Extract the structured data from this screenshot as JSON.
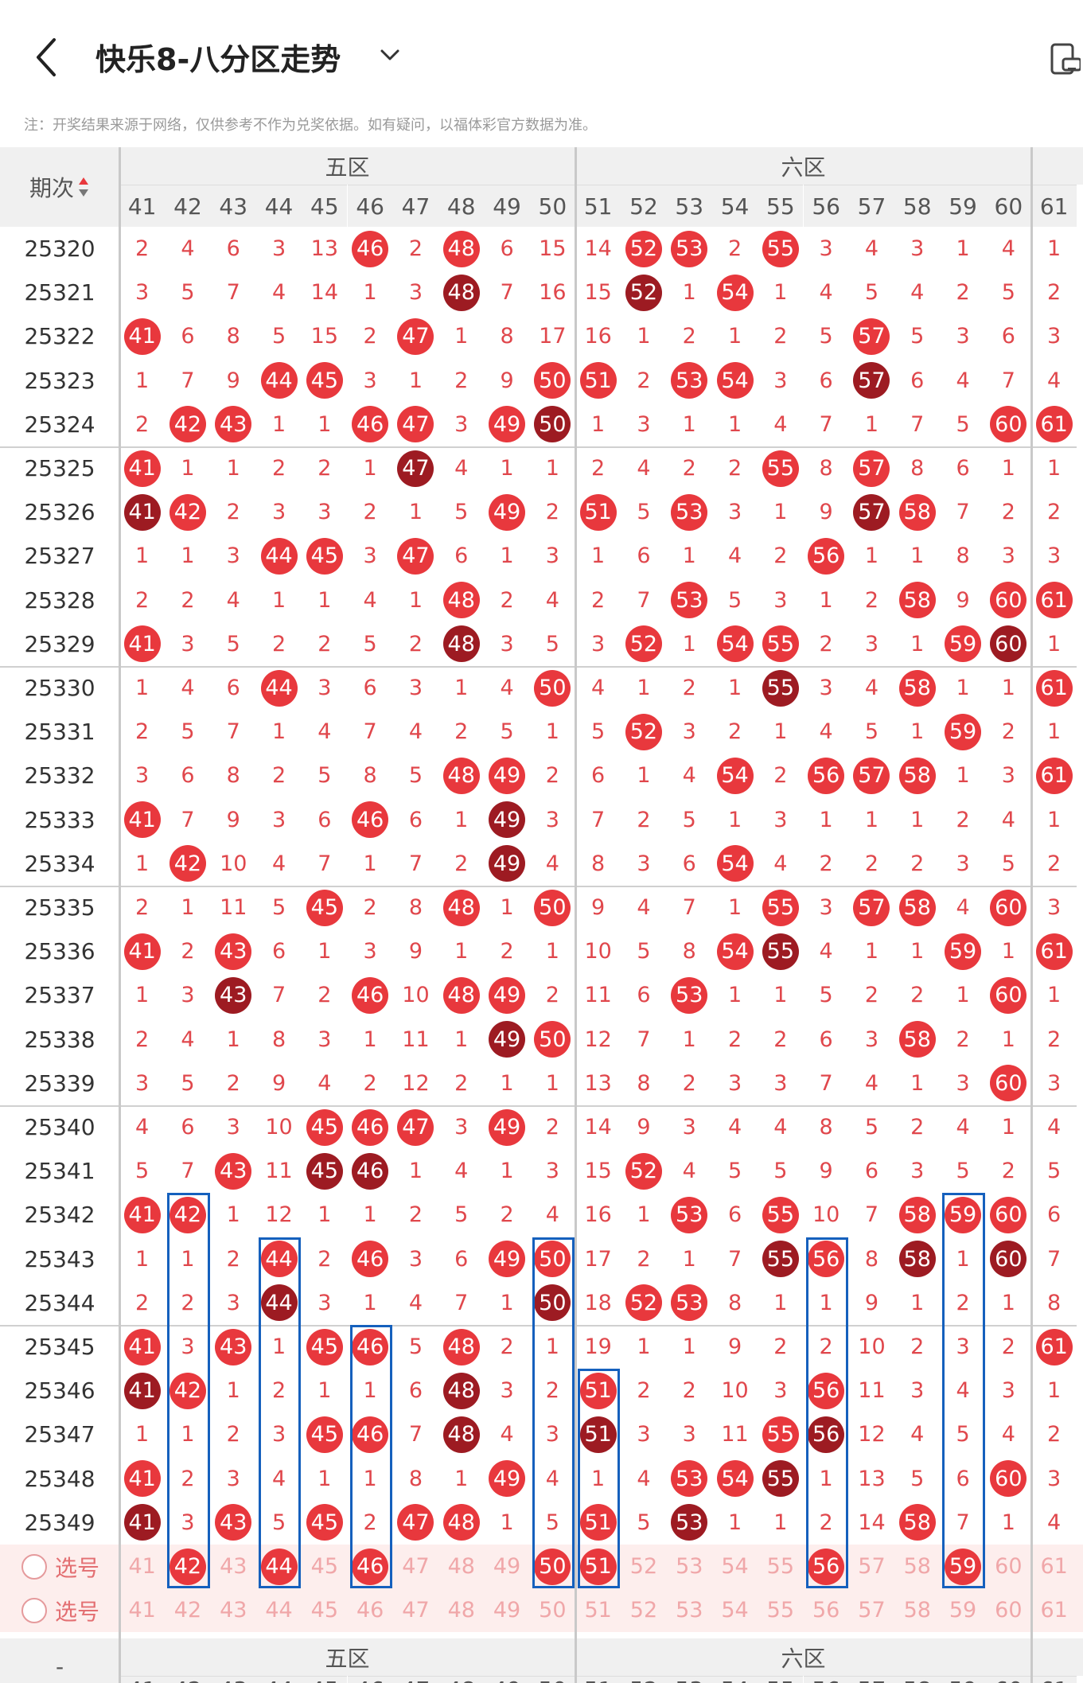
{
  "header": {
    "title": "快乐8-八分区走势",
    "back_icon": "chevron-left-icon",
    "dropdown_icon": "chevron-down-icon",
    "device_icon": "phone-rotate-icon"
  },
  "note": "注：开奖结果来源于网络，仅供参考不作为兑奖依据。如有疑问，以福体彩官方数据为准。",
  "table": {
    "issue_header": "期次",
    "zones": [
      {
        "name": "五区"
      },
      {
        "name": "六区"
      }
    ],
    "columns": [
      "41",
      "42",
      "43",
      "44",
      "45",
      "46",
      "47",
      "48",
      "49",
      "50",
      "51",
      "52",
      "53",
      "54",
      "55",
      "56",
      "57",
      "58",
      "59",
      "60",
      "61"
    ],
    "colors": {
      "hit": "#e8383d",
      "repeat": "#9d1b22",
      "miss_text": "#e0474c",
      "select_text": "#f0a7a9",
      "select_bg": "#fdeeed",
      "select_label": "#e36f72",
      "blue_box": "#1560bd"
    },
    "rows": [
      {
        "issue": "25320",
        "values": [
          "2",
          "4",
          "6",
          "3",
          "13",
          "46",
          "2",
          "48",
          "6",
          "15",
          "14",
          "52",
          "53",
          "2",
          "55",
          "3",
          "4",
          "3",
          "1",
          "4",
          "1"
        ]
      },
      {
        "issue": "25321",
        "values": [
          "3",
          "5",
          "7",
          "4",
          "14",
          "1",
          "3",
          "48",
          "7",
          "16",
          "15",
          "52",
          "1",
          "54",
          "1",
          "4",
          "5",
          "4",
          "2",
          "5",
          "2"
        ]
      },
      {
        "issue": "25322",
        "values": [
          "41",
          "6",
          "8",
          "5",
          "15",
          "2",
          "47",
          "1",
          "8",
          "17",
          "16",
          "1",
          "2",
          "1",
          "2",
          "5",
          "57",
          "5",
          "3",
          "6",
          "3"
        ]
      },
      {
        "issue": "25323",
        "values": [
          "1",
          "7",
          "9",
          "44",
          "45",
          "3",
          "1",
          "2",
          "9",
          "50",
          "51",
          "2",
          "53",
          "54",
          "3",
          "6",
          "57",
          "6",
          "4",
          "7",
          "4"
        ]
      },
      {
        "issue": "25324",
        "values": [
          "2",
          "42",
          "43",
          "1",
          "1",
          "46",
          "47",
          "3",
          "49",
          "50",
          "1",
          "3",
          "1",
          "1",
          "4",
          "7",
          "1",
          "7",
          "5",
          "60",
          "61"
        ]
      },
      {
        "issue": "25325",
        "values": [
          "41",
          "1",
          "1",
          "2",
          "2",
          "1",
          "47",
          "4",
          "1",
          "1",
          "2",
          "4",
          "2",
          "2",
          "55",
          "8",
          "57",
          "8",
          "6",
          "1",
          "1"
        ]
      },
      {
        "issue": "25326",
        "values": [
          "41",
          "42",
          "2",
          "3",
          "3",
          "2",
          "1",
          "5",
          "49",
          "2",
          "51",
          "5",
          "53",
          "3",
          "1",
          "9",
          "57",
          "58",
          "7",
          "2",
          "2"
        ]
      },
      {
        "issue": "25327",
        "values": [
          "1",
          "1",
          "3",
          "44",
          "45",
          "3",
          "47",
          "6",
          "1",
          "3",
          "1",
          "6",
          "1",
          "4",
          "2",
          "56",
          "1",
          "1",
          "8",
          "3",
          "3"
        ]
      },
      {
        "issue": "25328",
        "values": [
          "2",
          "2",
          "4",
          "1",
          "1",
          "4",
          "1",
          "48",
          "2",
          "4",
          "2",
          "7",
          "53",
          "5",
          "3",
          "1",
          "2",
          "58",
          "9",
          "60",
          "61"
        ]
      },
      {
        "issue": "25329",
        "values": [
          "41",
          "3",
          "5",
          "2",
          "2",
          "5",
          "2",
          "48",
          "3",
          "5",
          "3",
          "52",
          "1",
          "54",
          "55",
          "2",
          "3",
          "1",
          "59",
          "60",
          "1"
        ]
      },
      {
        "issue": "25330",
        "values": [
          "1",
          "4",
          "6",
          "44",
          "3",
          "6",
          "3",
          "1",
          "4",
          "50",
          "4",
          "1",
          "2",
          "1",
          "55",
          "3",
          "4",
          "58",
          "1",
          "1",
          "61"
        ]
      },
      {
        "issue": "25331",
        "values": [
          "2",
          "5",
          "7",
          "1",
          "4",
          "7",
          "4",
          "2",
          "5",
          "1",
          "5",
          "52",
          "3",
          "2",
          "1",
          "4",
          "5",
          "1",
          "59",
          "2",
          "1"
        ]
      },
      {
        "issue": "25332",
        "values": [
          "3",
          "6",
          "8",
          "2",
          "5",
          "8",
          "5",
          "48",
          "49",
          "2",
          "6",
          "1",
          "4",
          "54",
          "2",
          "56",
          "57",
          "58",
          "1",
          "3",
          "61"
        ]
      },
      {
        "issue": "25333",
        "values": [
          "41",
          "7",
          "9",
          "3",
          "6",
          "46",
          "6",
          "1",
          "49",
          "3",
          "7",
          "2",
          "5",
          "1",
          "3",
          "1",
          "1",
          "1",
          "2",
          "4",
          "1"
        ]
      },
      {
        "issue": "25334",
        "values": [
          "1",
          "42",
          "10",
          "4",
          "7",
          "1",
          "7",
          "2",
          "49",
          "4",
          "8",
          "3",
          "6",
          "54",
          "4",
          "2",
          "2",
          "2",
          "3",
          "5",
          "2"
        ]
      },
      {
        "issue": "25335",
        "values": [
          "2",
          "1",
          "11",
          "5",
          "45",
          "2",
          "8",
          "48",
          "1",
          "50",
          "9",
          "4",
          "7",
          "1",
          "55",
          "3",
          "57",
          "58",
          "4",
          "60",
          "3"
        ]
      },
      {
        "issue": "25336",
        "values": [
          "41",
          "2",
          "43",
          "6",
          "1",
          "3",
          "9",
          "1",
          "2",
          "1",
          "10",
          "5",
          "8",
          "54",
          "55",
          "4",
          "1",
          "1",
          "59",
          "1",
          "61"
        ]
      },
      {
        "issue": "25337",
        "values": [
          "1",
          "3",
          "43",
          "7",
          "2",
          "46",
          "10",
          "48",
          "49",
          "2",
          "11",
          "6",
          "53",
          "1",
          "1",
          "5",
          "2",
          "2",
          "1",
          "60",
          "1"
        ]
      },
      {
        "issue": "25338",
        "values": [
          "2",
          "4",
          "1",
          "8",
          "3",
          "1",
          "11",
          "1",
          "49",
          "50",
          "12",
          "7",
          "1",
          "2",
          "2",
          "6",
          "3",
          "58",
          "2",
          "1",
          "2"
        ]
      },
      {
        "issue": "25339",
        "values": [
          "3",
          "5",
          "2",
          "9",
          "4",
          "2",
          "12",
          "2",
          "1",
          "1",
          "13",
          "8",
          "2",
          "3",
          "3",
          "7",
          "4",
          "1",
          "3",
          "60",
          "3"
        ]
      },
      {
        "issue": "25340",
        "values": [
          "4",
          "6",
          "3",
          "10",
          "45",
          "46",
          "47",
          "3",
          "49",
          "2",
          "14",
          "9",
          "3",
          "4",
          "4",
          "8",
          "5",
          "2",
          "4",
          "1",
          "4"
        ]
      },
      {
        "issue": "25341",
        "values": [
          "5",
          "7",
          "43",
          "11",
          "45",
          "46",
          "1",
          "4",
          "1",
          "3",
          "15",
          "52",
          "4",
          "5",
          "5",
          "9",
          "6",
          "3",
          "5",
          "2",
          "5"
        ]
      },
      {
        "issue": "25342",
        "values": [
          "41",
          "42",
          "1",
          "12",
          "1",
          "1",
          "2",
          "5",
          "2",
          "4",
          "16",
          "1",
          "53",
          "6",
          "55",
          "10",
          "7",
          "58",
          "59",
          "60",
          "6"
        ]
      },
      {
        "issue": "25343",
        "values": [
          "1",
          "1",
          "2",
          "44",
          "2",
          "46",
          "3",
          "6",
          "49",
          "50",
          "17",
          "2",
          "1",
          "7",
          "55",
          "56",
          "8",
          "58",
          "1",
          "60",
          "7"
        ]
      },
      {
        "issue": "25344",
        "values": [
          "2",
          "2",
          "3",
          "44",
          "3",
          "1",
          "4",
          "7",
          "1",
          "50",
          "18",
          "52",
          "53",
          "8",
          "1",
          "1",
          "9",
          "1",
          "2",
          "1",
          "8"
        ]
      },
      {
        "issue": "25345",
        "values": [
          "41",
          "3",
          "43",
          "1",
          "45",
          "46",
          "5",
          "48",
          "2",
          "1",
          "19",
          "1",
          "1",
          "9",
          "2",
          "2",
          "10",
          "2",
          "3",
          "2",
          "61"
        ]
      },
      {
        "issue": "25346",
        "values": [
          "41",
          "42",
          "1",
          "2",
          "1",
          "1",
          "6",
          "48",
          "3",
          "2",
          "51",
          "2",
          "2",
          "10",
          "3",
          "56",
          "11",
          "3",
          "4",
          "3",
          "1"
        ]
      },
      {
        "issue": "25347",
        "values": [
          "1",
          "1",
          "2",
          "3",
          "45",
          "46",
          "7",
          "48",
          "4",
          "3",
          "51",
          "3",
          "3",
          "11",
          "55",
          "56",
          "12",
          "4",
          "5",
          "4",
          "2"
        ]
      },
      {
        "issue": "25348",
        "values": [
          "41",
          "2",
          "3",
          "4",
          "1",
          "1",
          "8",
          "1",
          "49",
          "4",
          "1",
          "4",
          "53",
          "54",
          "55",
          "1",
          "13",
          "5",
          "6",
          "60",
          "3"
        ]
      },
      {
        "issue": "25349",
        "values": [
          "41",
          "3",
          "43",
          "5",
          "45",
          "2",
          "47",
          "48",
          "1",
          "5",
          "51",
          "5",
          "53",
          "1",
          "1",
          "2",
          "14",
          "58",
          "7",
          "1",
          "4"
        ]
      }
    ],
    "select_rows": [
      {
        "label": "选号",
        "icon": "radio-circle-icon",
        "values": [
          "41",
          "42",
          "43",
          "44",
          "45",
          "46",
          "47",
          "48",
          "49",
          "50",
          "51",
          "52",
          "53",
          "54",
          "55",
          "56",
          "57",
          "58",
          "59",
          "60",
          "61"
        ],
        "selected": [
          "42",
          "44",
          "46",
          "50",
          "51",
          "56",
          "59"
        ]
      },
      {
        "label": "选号",
        "icon": "radio-circle-icon",
        "values": [
          "41",
          "42",
          "43",
          "44",
          "45",
          "46",
          "47",
          "48",
          "49",
          "50",
          "51",
          "52",
          "53",
          "54",
          "55",
          "56",
          "57",
          "58",
          "59",
          "60",
          "61"
        ],
        "selected": []
      }
    ],
    "footer_issue": "-",
    "footer_partial_columns": [
      "41",
      "42",
      "43",
      "44",
      "45",
      "46",
      "47",
      "48",
      "49",
      "50",
      "51",
      "52",
      "53",
      "54",
      "55",
      "56",
      "57",
      "58",
      "59",
      "60",
      "61"
    ]
  }
}
